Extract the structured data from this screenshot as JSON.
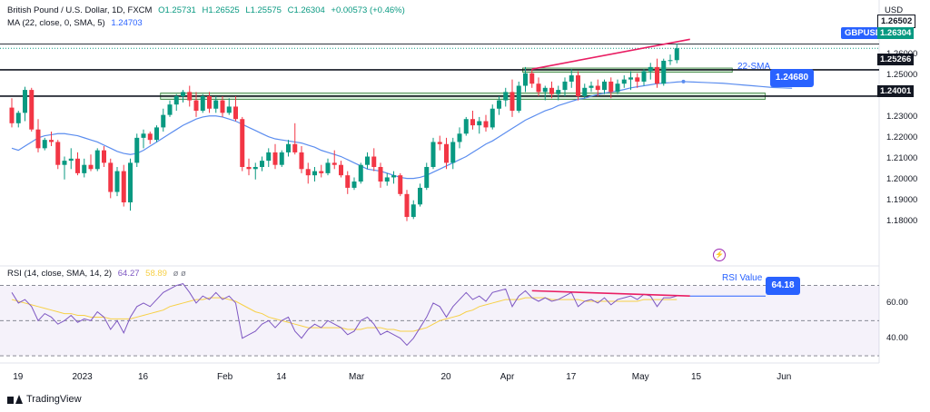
{
  "header": {
    "title": "British Pound / U.S. Dollar, 1D, FXCM",
    "open": "O1.25731",
    "high": "H1.26525",
    "low": "L1.25575",
    "close": "C1.26304",
    "change": "+0.00573 (+0.46%)",
    "ma_label": "MA (22, close, 0, SMA, 5)",
    "ma_value": "1.24703"
  },
  "rsi_header": {
    "label": "RSI (14, close, SMA, 14, 2)",
    "rsi_value": "64.27",
    "sma_value": "58.89",
    "extra": "ø ø"
  },
  "currency": "USD",
  "symbol_label": "GBPUSD",
  "price_tags": {
    "top": "1.26502",
    "current": "1.26304",
    "resistance": "1.25266",
    "support": "1.24001"
  },
  "annotations": {
    "sma_text": "22-SMA",
    "sma_value": "1.24680",
    "rsi_text": "RSI Value",
    "rsi_value": "64.18"
  },
  "brand": "TradingView",
  "colors": {
    "up": "#089981",
    "down": "#f23645",
    "ma": "#5b8def",
    "rsi": "#7e57c2",
    "rsi_sma": "#f7d046",
    "trendline": "#e91e63",
    "zone_fill": "#c8e6c9",
    "accent": "#2962ff"
  },
  "chart_data": {
    "type": "candlestick",
    "price_axis": {
      "ticks": [
        "1.26000",
        "1.25000",
        "1.23000",
        "1.22000",
        "1.21000",
        "1.20000",
        "1.19000",
        "1.18000"
      ],
      "range": [
        1.172,
        1.2705
      ]
    },
    "x_axis": {
      "ticks": [
        {
          "label": "19",
          "index": 1
        },
        {
          "label": "2023",
          "index": 10
        },
        {
          "label": "16",
          "index": 20
        },
        {
          "label": "Feb",
          "index": 32
        },
        {
          "label": "14",
          "index": 41
        },
        {
          "label": "Mar",
          "index": 52
        },
        {
          "label": "20",
          "index": 66
        },
        {
          "label": "Apr",
          "index": 75
        },
        {
          "label": "17",
          "index": 85
        },
        {
          "label": "May",
          "index": 95
        },
        {
          "label": "15",
          "index": 104
        },
        {
          "label": "Jun",
          "index": 117
        }
      ]
    },
    "candles": [
      [
        1.2345,
        1.239,
        1.225,
        1.227
      ],
      [
        1.227,
        1.233,
        1.225,
        1.232
      ],
      [
        1.232,
        1.2445,
        1.228,
        1.243
      ],
      [
        1.243,
        1.244,
        1.223,
        1.224
      ],
      [
        1.224,
        1.229,
        1.213,
        1.215
      ],
      [
        1.215,
        1.22,
        1.214,
        1.219
      ],
      [
        1.219,
        1.223,
        1.216,
        1.218
      ],
      [
        1.218,
        1.219,
        1.205,
        1.207
      ],
      [
        1.207,
        1.211,
        1.2,
        1.209
      ],
      [
        1.209,
        1.215,
        1.205,
        1.21
      ],
      [
        1.21,
        1.213,
        1.202,
        1.203
      ],
      [
        1.203,
        1.21,
        1.201,
        1.207
      ],
      [
        1.207,
        1.212,
        1.204,
        1.205
      ],
      [
        1.205,
        1.215,
        1.204,
        1.214
      ],
      [
        1.214,
        1.216,
        1.206,
        1.208
      ],
      [
        1.208,
        1.21,
        1.191,
        1.194
      ],
      [
        1.194,
        1.206,
        1.192,
        1.204
      ],
      [
        1.204,
        1.207,
        1.187,
        1.189
      ],
      [
        1.189,
        1.21,
        1.185,
        1.208
      ],
      [
        1.208,
        1.222,
        1.206,
        1.22
      ],
      [
        1.22,
        1.224,
        1.215,
        1.222
      ],
      [
        1.222,
        1.223,
        1.217,
        1.219
      ],
      [
        1.219,
        1.226,
        1.218,
        1.225
      ],
      [
        1.225,
        1.234,
        1.223,
        1.231
      ],
      [
        1.231,
        1.238,
        1.23,
        1.236
      ],
      [
        1.236,
        1.241,
        1.233,
        1.24
      ],
      [
        1.24,
        1.243,
        1.237,
        1.242
      ],
      [
        1.242,
        1.245,
        1.235,
        1.238
      ],
      [
        1.238,
        1.242,
        1.23,
        1.233
      ],
      [
        1.233,
        1.241,
        1.232,
        1.24
      ],
      [
        1.24,
        1.242,
        1.232,
        1.234
      ],
      [
        1.234,
        1.24,
        1.232,
        1.238
      ],
      [
        1.238,
        1.24,
        1.23,
        1.232
      ],
      [
        1.232,
        1.239,
        1.231,
        1.235
      ],
      [
        1.235,
        1.24,
        1.228,
        1.229
      ],
      [
        1.229,
        1.23,
        1.204,
        1.206
      ],
      [
        1.206,
        1.21,
        1.202,
        1.205
      ],
      [
        1.205,
        1.208,
        1.2,
        1.206
      ],
      [
        1.206,
        1.211,
        1.204,
        1.209
      ],
      [
        1.209,
        1.215,
        1.206,
        1.213
      ],
      [
        1.213,
        1.217,
        1.205,
        1.207
      ],
      [
        1.207,
        1.214,
        1.206,
        1.213
      ],
      [
        1.213,
        1.219,
        1.211,
        1.217
      ],
      [
        1.217,
        1.227,
        1.212,
        1.213
      ],
      [
        1.213,
        1.216,
        1.203,
        1.205
      ],
      [
        1.205,
        1.208,
        1.198,
        1.202
      ],
      [
        1.202,
        1.206,
        1.199,
        1.204
      ],
      [
        1.204,
        1.207,
        1.201,
        1.203
      ],
      [
        1.203,
        1.21,
        1.202,
        1.208
      ],
      [
        1.208,
        1.214,
        1.205,
        1.207
      ],
      [
        1.207,
        1.209,
        1.201,
        1.202
      ],
      [
        1.202,
        1.204,
        1.193,
        1.196
      ],
      [
        1.196,
        1.201,
        1.195,
        1.199
      ],
      [
        1.199,
        1.208,
        1.198,
        1.207
      ],
      [
        1.207,
        1.213,
        1.205,
        1.211
      ],
      [
        1.211,
        1.215,
        1.204,
        1.206
      ],
      [
        1.206,
        1.208,
        1.196,
        1.199
      ],
      [
        1.199,
        1.203,
        1.197,
        1.201
      ],
      [
        1.201,
        1.204,
        1.198,
        1.202
      ],
      [
        1.202,
        1.203,
        1.192,
        1.193
      ],
      [
        1.193,
        1.195,
        1.18,
        1.182
      ],
      [
        1.182,
        1.19,
        1.181,
        1.188
      ],
      [
        1.188,
        1.198,
        1.187,
        1.196
      ],
      [
        1.196,
        1.208,
        1.195,
        1.206
      ],
      [
        1.206,
        1.22,
        1.205,
        1.218
      ],
      [
        1.218,
        1.221,
        1.214,
        1.217
      ],
      [
        1.217,
        1.22,
        1.205,
        1.208
      ],
      [
        1.208,
        1.22,
        1.205,
        1.218
      ],
      [
        1.218,
        1.225,
        1.215,
        1.222
      ],
      [
        1.222,
        1.23,
        1.221,
        1.229
      ],
      [
        1.229,
        1.233,
        1.224,
        1.226
      ],
      [
        1.226,
        1.23,
        1.222,
        1.228
      ],
      [
        1.228,
        1.231,
        1.223,
        1.225
      ],
      [
        1.225,
        1.236,
        1.224,
        1.234
      ],
      [
        1.234,
        1.24,
        1.231,
        1.238
      ],
      [
        1.238,
        1.244,
        1.235,
        1.242
      ],
      [
        1.242,
        1.248,
        1.23,
        1.233
      ],
      [
        1.233,
        1.247,
        1.232,
        1.245
      ],
      [
        1.245,
        1.254,
        1.242,
        1.251
      ],
      [
        1.251,
        1.253,
        1.244,
        1.246
      ],
      [
        1.246,
        1.249,
        1.24,
        1.242
      ],
      [
        1.242,
        1.245,
        1.238,
        1.244
      ],
      [
        1.244,
        1.247,
        1.239,
        1.241
      ],
      [
        1.241,
        1.245,
        1.238,
        1.243
      ],
      [
        1.243,
        1.249,
        1.24,
        1.247
      ],
      [
        1.247,
        1.253,
        1.244,
        1.25
      ],
      [
        1.25,
        1.252,
        1.238,
        1.24
      ],
      [
        1.24,
        1.246,
        1.239,
        1.244
      ],
      [
        1.244,
        1.247,
        1.242,
        1.245
      ],
      [
        1.245,
        1.248,
        1.24,
        1.243
      ],
      [
        1.243,
        1.248,
        1.241,
        1.247
      ],
      [
        1.247,
        1.249,
        1.239,
        1.242
      ],
      [
        1.242,
        1.248,
        1.241,
        1.246
      ],
      [
        1.246,
        1.25,
        1.244,
        1.248
      ],
      [
        1.248,
        1.252,
        1.243,
        1.249
      ],
      [
        1.249,
        1.251,
        1.244,
        1.247
      ],
      [
        1.247,
        1.253,
        1.245,
        1.252
      ],
      [
        1.252,
        1.256,
        1.248,
        1.254
      ],
      [
        1.254,
        1.258,
        1.244,
        1.246
      ],
      [
        1.246,
        1.258,
        1.245,
        1.257
      ],
      [
        1.257,
        1.26,
        1.255,
        1.2573
      ],
      [
        1.2573,
        1.2653,
        1.2558,
        1.263
      ]
    ],
    "ma_22": [
      1.215,
      1.214,
      1.216,
      1.218,
      1.22,
      1.221,
      1.2215,
      1.222,
      1.222,
      1.2215,
      1.221,
      1.22,
      1.219,
      1.218,
      1.2165,
      1.215,
      1.2135,
      1.2125,
      1.212,
      1.2125,
      1.214,
      1.216,
      1.218,
      1.22,
      1.222,
      1.224,
      1.226,
      1.2275,
      1.229,
      1.23,
      1.2305,
      1.2305,
      1.23,
      1.229,
      1.228,
      1.2265,
      1.225,
      1.2235,
      1.222,
      1.2205,
      1.2195,
      1.219,
      1.2185,
      1.218,
      1.2175,
      1.2165,
      1.2155,
      1.214,
      1.213,
      1.212,
      1.211,
      1.2095,
      1.208,
      1.2065,
      1.205,
      1.2045,
      1.204,
      1.203,
      1.202,
      1.201,
      1.2005,
      1.2005,
      1.201,
      1.202,
      1.2035,
      1.205,
      1.2065,
      1.208,
      1.2095,
      1.211,
      1.213,
      1.215,
      1.217,
      1.2185,
      1.2205,
      1.2225,
      1.2245,
      1.2265,
      1.2285,
      1.23,
      1.2315,
      1.233,
      1.234,
      1.2355,
      1.2365,
      1.2375,
      1.2385,
      1.239,
      1.24,
      1.2408,
      1.2415,
      1.242,
      1.2425,
      1.2432,
      1.244,
      1.2445,
      1.245,
      1.2455,
      1.246,
      1.2463,
      1.2465,
      1.2468,
      1.247
    ],
    "ma_22_projection": [
      1.247,
      1.2468,
      1.2466,
      1.2464,
      1.2462,
      1.2458,
      1.2454,
      1.245,
      1.2446,
      1.2442,
      1.244,
      1.2438
    ],
    "rsi": [
      66,
      60,
      62,
      58,
      50,
      54,
      52,
      48,
      50,
      53,
      49,
      51,
      50,
      55,
      52,
      45,
      50,
      43,
      52,
      58,
      60,
      58,
      62,
      66,
      68,
      70,
      71,
      66,
      60,
      64,
      62,
      66,
      62,
      64,
      60,
      40,
      42,
      44,
      48,
      50,
      46,
      50,
      52,
      44,
      40,
      45,
      48,
      46,
      50,
      48,
      46,
      42,
      44,
      50,
      52,
      48,
      42,
      44,
      42,
      40,
      36,
      40,
      46,
      52,
      60,
      58,
      52,
      58,
      62,
      66,
      62,
      64,
      61,
      66,
      67,
      68,
      58,
      64,
      67,
      63,
      61,
      63,
      61,
      62,
      64,
      66,
      58,
      61,
      62,
      60,
      63,
      59,
      62,
      63,
      64,
      62,
      65,
      64,
      58,
      63,
      63,
      64
    ],
    "rsi_sma": [
      62,
      61,
      60,
      59,
      58,
      57,
      56,
      55,
      54,
      54,
      53,
      53,
      52,
      52,
      52,
      51,
      51,
      51,
      51,
      52,
      53,
      54,
      55,
      56,
      58,
      59,
      60,
      61,
      62,
      62,
      63,
      63,
      63,
      62,
      61,
      59,
      57,
      55,
      54,
      52,
      51,
      50,
      49,
      48,
      47,
      46,
      46,
      46,
      46,
      46,
      46,
      45,
      45,
      45,
      46,
      46,
      46,
      45,
      45,
      44,
      44,
      44,
      45,
      46,
      48,
      50,
      51,
      52,
      53,
      55,
      56,
      58,
      59,
      60,
      61,
      62,
      62,
      62,
      63,
      63,
      63,
      63,
      62,
      62,
      62,
      62,
      62,
      61,
      61,
      61,
      61,
      61,
      61,
      61,
      61,
      61,
      62,
      62,
      62,
      62,
      62,
      62
    ],
    "rsi_axis": {
      "ticks": [
        "60.00",
        "40.00"
      ],
      "range": [
        29,
        77
      ],
      "bands": [
        70,
        50,
        30
      ]
    },
    "levels": [
      {
        "price": 1.26502,
        "style": "thin"
      },
      {
        "price": 1.25266,
        "style": "thick"
      },
      {
        "price": 1.24001,
        "style": "thick"
      }
    ],
    "zones": [
      {
        "from_index": 78,
        "to_index": 109,
        "low": 1.2515,
        "high": 1.2535
      },
      {
        "from_index": 23,
        "to_index": 114,
        "low": 1.2385,
        "high": 1.2415
      }
    ],
    "price_trendline": {
      "from": [
        79,
        1.253
      ],
      "to": [
        103,
        1.2673
      ]
    },
    "rsi_trendline": {
      "from": [
        79,
        67
      ],
      "to": [
        103,
        64
      ]
    }
  }
}
